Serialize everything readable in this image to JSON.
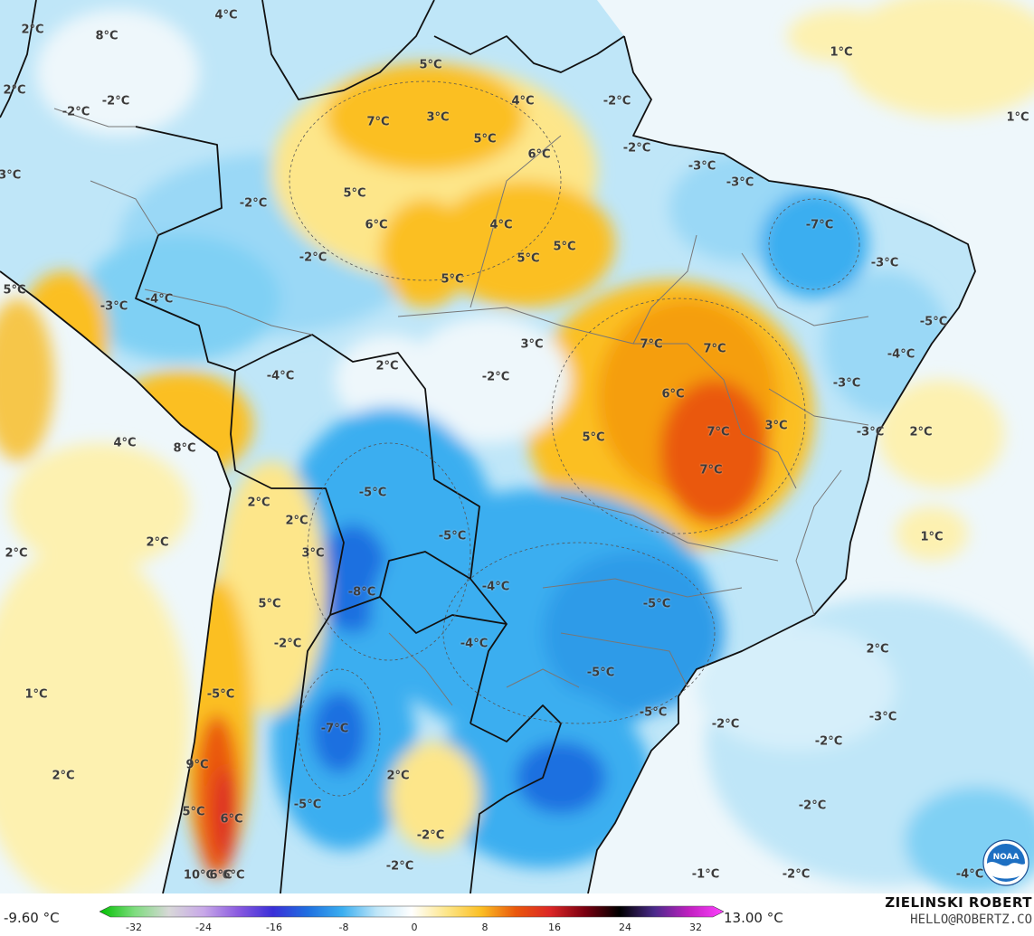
{
  "map": {
    "colors": {
      "ocean_warm": "#fdf1b0",
      "ocean_neutral": "#eef7fb",
      "cold_light": "#bfe6f8",
      "cold_mid": "#7fd0f4",
      "cold_strong": "#3aaef0",
      "cold_deep": "#1f6fe0",
      "warm_light": "#fde68a",
      "warm_mid": "#fbbf24",
      "warm_strong": "#f59e0b",
      "warm_deep": "#ea580c",
      "warm_hot": "#dc2626",
      "border": "#111111",
      "state_border": "#777777"
    },
    "labels": [
      {
        "id": "l1",
        "text": "2°C"
      },
      {
        "id": "l2",
        "text": "4°C"
      },
      {
        "id": "l3",
        "text": "8°C"
      },
      {
        "id": "l4",
        "text": "2°C"
      },
      {
        "id": "l5",
        "text": "-2°C"
      },
      {
        "id": "l6",
        "text": "-2°C"
      },
      {
        "id": "l7",
        "text": "5°C"
      },
      {
        "id": "l8",
        "text": "4°C"
      },
      {
        "id": "l9",
        "text": "-2°C"
      },
      {
        "id": "l10",
        "text": "7°C"
      },
      {
        "id": "l11",
        "text": "3°C"
      },
      {
        "id": "l12",
        "text": "5°C"
      },
      {
        "id": "l13",
        "text": "-2°C"
      },
      {
        "id": "l14",
        "text": "6°C"
      },
      {
        "id": "l15",
        "text": "1°C"
      },
      {
        "id": "l16",
        "text": "1°C"
      },
      {
        "id": "l17",
        "text": "-3°C"
      },
      {
        "id": "l18",
        "text": "-3°C"
      },
      {
        "id": "l19",
        "text": "-3°C"
      },
      {
        "id": "l20",
        "text": "5°C"
      },
      {
        "id": "l21",
        "text": "-2°C"
      },
      {
        "id": "l22",
        "text": "-7°C"
      },
      {
        "id": "l23",
        "text": "4°C"
      },
      {
        "id": "l24",
        "text": "5°C"
      },
      {
        "id": "l25",
        "text": "6°C"
      },
      {
        "id": "l26",
        "text": "-2°C"
      },
      {
        "id": "l27",
        "text": "5°C"
      },
      {
        "id": "l28",
        "text": "-3°C"
      },
      {
        "id": "l29",
        "text": "5°C"
      },
      {
        "id": "l30",
        "text": "-4°C"
      },
      {
        "id": "l31",
        "text": "-3°C"
      },
      {
        "id": "l32",
        "text": "5°C"
      },
      {
        "id": "l33",
        "text": "-5°C"
      },
      {
        "id": "l34",
        "text": "3°C"
      },
      {
        "id": "l35",
        "text": "7°C"
      },
      {
        "id": "l36",
        "text": "7°C"
      },
      {
        "id": "l37",
        "text": "-4°C"
      },
      {
        "id": "l38",
        "text": "2°C"
      },
      {
        "id": "l39",
        "text": "-2°C"
      },
      {
        "id": "l40",
        "text": "6°C"
      },
      {
        "id": "l41",
        "text": "-3°C"
      },
      {
        "id": "l42",
        "text": "2°C"
      },
      {
        "id": "l43",
        "text": "3°C"
      },
      {
        "id": "l44",
        "text": "7°C"
      },
      {
        "id": "l45",
        "text": "-3°C"
      },
      {
        "id": "l46",
        "text": "-4°C"
      },
      {
        "id": "l47",
        "text": "4°C"
      },
      {
        "id": "l48",
        "text": "8°C"
      },
      {
        "id": "l49",
        "text": "5°C"
      },
      {
        "id": "l50",
        "text": "7°C"
      },
      {
        "id": "l51",
        "text": "-5°C"
      },
      {
        "id": "l52",
        "text": "2°C"
      },
      {
        "id": "l53",
        "text": "2°C"
      },
      {
        "id": "l54",
        "text": "2°C"
      },
      {
        "id": "l55",
        "text": "2°C"
      },
      {
        "id": "l56",
        "text": "-5°C"
      },
      {
        "id": "l57",
        "text": "3°C"
      },
      {
        "id": "l58",
        "text": "1°C"
      },
      {
        "id": "l59",
        "text": "-8°C"
      },
      {
        "id": "l60",
        "text": "-4°C"
      },
      {
        "id": "l61",
        "text": "-5°C"
      },
      {
        "id": "l62",
        "text": "5°C"
      },
      {
        "id": "l63",
        "text": "-2°C"
      },
      {
        "id": "l64",
        "text": "2°C"
      },
      {
        "id": "l65",
        "text": "-4°C"
      },
      {
        "id": "l66",
        "text": "-5°C"
      },
      {
        "id": "l67",
        "text": "1°C"
      },
      {
        "id": "l68",
        "text": "-5°C"
      },
      {
        "id": "l69",
        "text": "-3°C"
      },
      {
        "id": "l70",
        "text": "-7°C"
      },
      {
        "id": "l71",
        "text": "-2°C"
      },
      {
        "id": "l72",
        "text": "-5°C"
      },
      {
        "id": "l73",
        "text": "-2°C"
      },
      {
        "id": "l74",
        "text": "2°C"
      },
      {
        "id": "l75",
        "text": "9°C"
      },
      {
        "id": "l76",
        "text": "5°C"
      },
      {
        "id": "l77",
        "text": "-5°C"
      },
      {
        "id": "l78",
        "text": "6°C"
      },
      {
        "id": "l79",
        "text": "-2°C"
      },
      {
        "id": "l80",
        "text": "2°C"
      },
      {
        "id": "l81",
        "text": "-2°C"
      },
      {
        "id": "l82",
        "text": "10°C"
      },
      {
        "id": "l83",
        "text": "6°C"
      },
      {
        "id": "l84",
        "text": "6°C"
      },
      {
        "id": "l85",
        "text": "-2°C"
      },
      {
        "id": "l86",
        "text": "-1°C"
      },
      {
        "id": "l87",
        "text": "-2°C"
      },
      {
        "id": "l88",
        "text": "-4°C"
      }
    ]
  },
  "colorbar": {
    "min_label": "-9.60 °C",
    "max_label": "13.00 °C",
    "ticks": [
      "-32",
      "-24",
      "-16",
      "-8",
      "0",
      "8",
      "16",
      "24",
      "32"
    ],
    "stops": [
      "#00c000",
      "#7ddc7d",
      "#d8d8d8",
      "#c8a8e8",
      "#8a5ae0",
      "#3a2fd8",
      "#1f6fe0",
      "#3aaef0",
      "#bfe6f8",
      "#ffffff",
      "#fde68a",
      "#fbbf24",
      "#ea580c",
      "#dc2626",
      "#7a0010",
      "#000000",
      "#4a2a8a",
      "#c020c0",
      "#ff40ff"
    ]
  },
  "credits": {
    "author": "ZIELINSKI ROBERT",
    "email": "HELLO@ROBERTZ.CO",
    "logo": "NOAA"
  }
}
